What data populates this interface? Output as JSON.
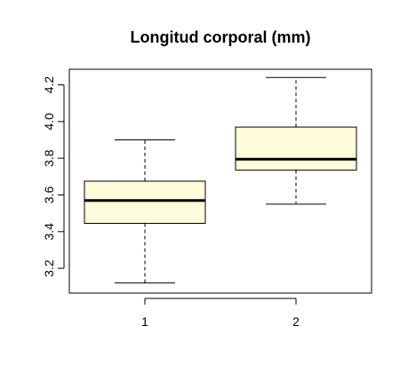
{
  "chart_data": {
    "type": "box",
    "title": "Longitud corporal (mm)",
    "xlabel": "",
    "ylabel": "",
    "categories": [
      "1",
      "2"
    ],
    "ylim": [
      3.065,
      4.285
    ],
    "yticks": [
      "3.2",
      "3.4",
      "3.6",
      "3.8",
      "4.0",
      "4.2"
    ],
    "grid": false,
    "legend": "none",
    "boxes": [
      {
        "category": "1",
        "min": 3.12,
        "q1": 3.445,
        "median": 3.57,
        "q3": 3.675,
        "max": 3.9
      },
      {
        "category": "2",
        "min": 3.55,
        "q1": 3.735,
        "median": 3.795,
        "q3": 3.97,
        "max": 4.24
      }
    ],
    "colors": {
      "box_fill": "#fffcdc",
      "stroke": "#000000"
    }
  }
}
